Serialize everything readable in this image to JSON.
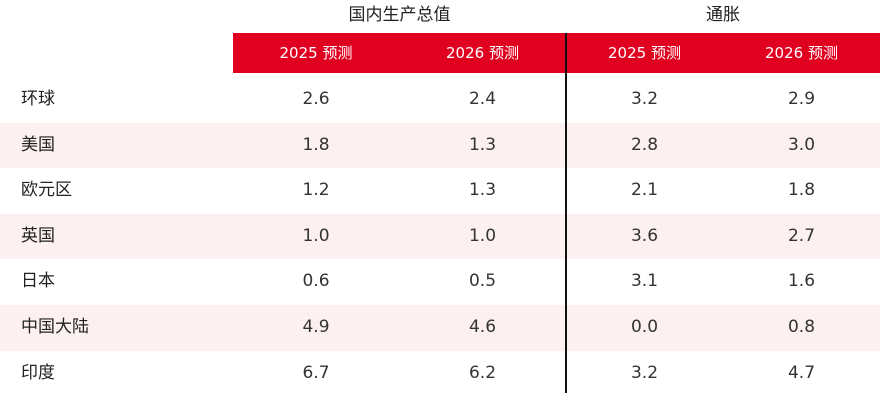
{
  "header": {
    "gdp_title": "国内生产总值",
    "inflation_title": "通胀",
    "columns": [
      "2025 预测",
      "2026 预测",
      "2025 预测",
      "2026 预测"
    ]
  },
  "rows": [
    {
      "label": "环球",
      "values": [
        "2.6",
        "2.4",
        "3.2",
        "2.9"
      ]
    },
    {
      "label": "美国",
      "values": [
        "1.8",
        "1.3",
        "2.8",
        "3.0"
      ]
    },
    {
      "label": "欧元区",
      "values": [
        "1.2",
        "1.3",
        "2.1",
        "1.8"
      ]
    },
    {
      "label": "英国",
      "values": [
        "1.0",
        "1.0",
        "3.6",
        "2.7"
      ]
    },
    {
      "label": "日本",
      "values": [
        "0.6",
        "0.5",
        "3.1",
        "1.6"
      ]
    },
    {
      "label": "中国大陆",
      "values": [
        "4.9",
        "4.6",
        "0.0",
        "0.8"
      ]
    },
    {
      "label": "印度",
      "values": [
        "6.7",
        "6.2",
        "3.2",
        "4.7"
      ]
    }
  ],
  "colors": {
    "header_red": "#e00020",
    "row_shade": "#fcf0f0"
  }
}
